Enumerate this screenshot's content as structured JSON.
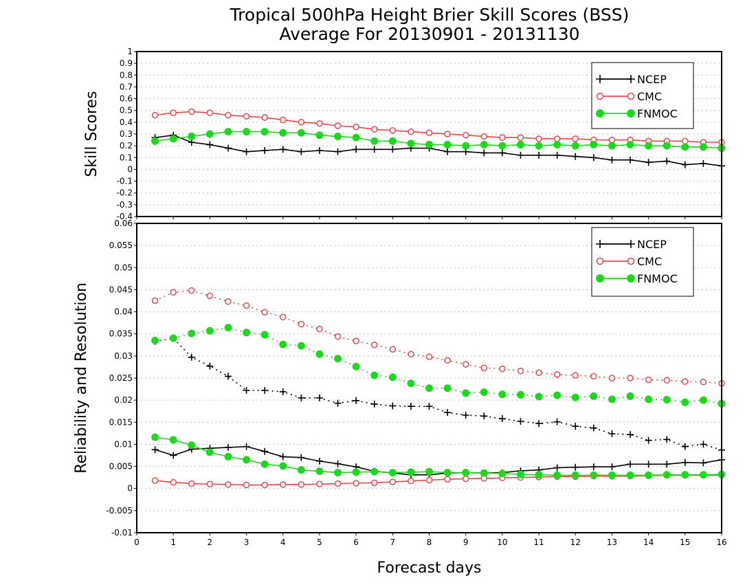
{
  "chart_data": [
    {
      "type": "line",
      "title": "Tropical 500hPa Height Brier Skill Scores (BSS)",
      "subtitle": "Average For 20130901 - 20131130",
      "ylabel": "Skill Scores",
      "xlabel": "",
      "xlim": [
        0,
        16
      ],
      "ylim": [
        -0.4,
        1
      ],
      "yticks": [
        "-0.4",
        "-0.3",
        "-0.2",
        "-0.1",
        "0",
        "0.1",
        "0.2",
        "0.3",
        "0.4",
        "0.5",
        "0.6",
        "0.7",
        "0.8",
        "0.9",
        "1"
      ],
      "grid": true,
      "legend_position": "top-right",
      "x": [
        0.5,
        1,
        1.5,
        2,
        2.5,
        3,
        3.5,
        4,
        4.5,
        5,
        5.5,
        6,
        6.5,
        7,
        7.5,
        8,
        8.5,
        9,
        9.5,
        10,
        10.5,
        11,
        11.5,
        12,
        12.5,
        13,
        13.5,
        14,
        14.5,
        15,
        15.5,
        16
      ],
      "series": [
        {
          "name": "NCEP",
          "color": "#000000",
          "marker": "plus",
          "line": "solid",
          "values": [
            0.27,
            0.29,
            0.23,
            0.21,
            0.18,
            0.15,
            0.16,
            0.17,
            0.15,
            0.16,
            0.15,
            0.17,
            0.17,
            0.17,
            0.18,
            0.18,
            0.15,
            0.15,
            0.14,
            0.14,
            0.12,
            0.12,
            0.12,
            0.11,
            0.1,
            0.08,
            0.08,
            0.06,
            0.07,
            0.04,
            0.05,
            0.03
          ]
        },
        {
          "name": "CMC",
          "color": "#e64646",
          "marker": "circle-open",
          "line": "solid",
          "values": [
            0.46,
            0.48,
            0.49,
            0.48,
            0.46,
            0.45,
            0.44,
            0.42,
            0.4,
            0.39,
            0.37,
            0.36,
            0.34,
            0.33,
            0.32,
            0.31,
            0.3,
            0.29,
            0.28,
            0.27,
            0.27,
            0.26,
            0.26,
            0.26,
            0.25,
            0.25,
            0.25,
            0.24,
            0.24,
            0.24,
            0.23,
            0.23
          ]
        },
        {
          "name": "FNMOC",
          "color": "#1ed71e",
          "marker": "circle-filled",
          "line": "solid",
          "values": [
            0.24,
            0.26,
            0.28,
            0.3,
            0.32,
            0.32,
            0.32,
            0.31,
            0.31,
            0.29,
            0.28,
            0.27,
            0.24,
            0.24,
            0.22,
            0.21,
            0.21,
            0.2,
            0.21,
            0.2,
            0.21,
            0.2,
            0.21,
            0.2,
            0.21,
            0.2,
            0.21,
            0.2,
            0.2,
            0.19,
            0.19,
            0.18
          ]
        }
      ]
    },
    {
      "type": "line",
      "title": "",
      "ylabel": "Reliability and Resolution",
      "xlabel": "Forecast days",
      "xlim": [
        0,
        16
      ],
      "ylim": [
        -0.01,
        0.06
      ],
      "xticks": [
        "0",
        "1",
        "2",
        "3",
        "4",
        "5",
        "6",
        "7",
        "8",
        "9",
        "10",
        "11",
        "12",
        "13",
        "14",
        "15",
        "16"
      ],
      "yticks": [
        "-0.01",
        "-0.005",
        "0",
        "0.005",
        "0.01",
        "0.015",
        "0.02",
        "0.025",
        "0.03",
        "0.035",
        "0.04",
        "0.045",
        "0.05",
        "0.055",
        "0.06"
      ],
      "grid": true,
      "legend_position": "top-right",
      "x": [
        0.5,
        1,
        1.5,
        2,
        2.5,
        3,
        3.5,
        4,
        4.5,
        5,
        5.5,
        6,
        6.5,
        7,
        7.5,
        8,
        8.5,
        9,
        9.5,
        10,
        10.5,
        11,
        11.5,
        12,
        12.5,
        13,
        13.5,
        14,
        14.5,
        15,
        15.5,
        16
      ],
      "series": [
        {
          "name": "NCEP",
          "color": "#000000",
          "marker": "plus",
          "line": "dotted",
          "legend": false,
          "values": [
            0.0333,
            0.034,
            0.0297,
            0.0277,
            0.0254,
            0.0222,
            0.0222,
            0.0219,
            0.0205,
            0.0205,
            0.0193,
            0.0199,
            0.0191,
            0.0187,
            0.0186,
            0.0186,
            0.0172,
            0.0166,
            0.0164,
            0.0158,
            0.0152,
            0.0147,
            0.0151,
            0.0141,
            0.0137,
            0.0124,
            0.0122,
            0.0109,
            0.0111,
            0.0095,
            0.01,
            0.0087
          ]
        },
        {
          "name": "CMC",
          "color": "#e64646",
          "marker": "circle-open",
          "line": "dotted",
          "legend": false,
          "values": [
            0.0425,
            0.0444,
            0.0448,
            0.0436,
            0.0423,
            0.0414,
            0.0399,
            0.0388,
            0.0372,
            0.0361,
            0.0344,
            0.0334,
            0.0325,
            0.0315,
            0.0304,
            0.0298,
            0.029,
            0.0281,
            0.0273,
            0.0271,
            0.0266,
            0.0262,
            0.0258,
            0.0256,
            0.0254,
            0.025,
            0.025,
            0.0246,
            0.0245,
            0.0242,
            0.0241,
            0.0238
          ]
        },
        {
          "name": "FNMOC",
          "color": "#1ed71e",
          "marker": "circle-filled",
          "line": "dotted",
          "legend": false,
          "values": [
            0.0335,
            0.034,
            0.0351,
            0.0357,
            0.0364,
            0.0353,
            0.0348,
            0.0326,
            0.0323,
            0.0304,
            0.0294,
            0.0276,
            0.0256,
            0.0252,
            0.0238,
            0.0227,
            0.0227,
            0.0216,
            0.0218,
            0.0213,
            0.0212,
            0.0208,
            0.0211,
            0.0206,
            0.0209,
            0.0202,
            0.0209,
            0.0202,
            0.0201,
            0.0195,
            0.02,
            0.0192
          ]
        },
        {
          "name": "NCEP",
          "color": "#000000",
          "marker": "plus",
          "line": "solid",
          "legend": true,
          "values": [
            0.0088,
            0.0075,
            0.0089,
            0.0091,
            0.0093,
            0.0095,
            0.0084,
            0.0072,
            0.007,
            0.0062,
            0.0056,
            0.0049,
            0.0039,
            0.0035,
            0.0031,
            0.0031,
            0.0035,
            0.0036,
            0.0035,
            0.0036,
            0.004,
            0.0042,
            0.0047,
            0.0048,
            0.0049,
            0.0049,
            0.0055,
            0.0055,
            0.0055,
            0.0059,
            0.0058,
            0.0065
          ]
        },
        {
          "name": "CMC",
          "color": "#e64646",
          "marker": "circle-open",
          "line": "solid",
          "legend": true,
          "values": [
            0.0018,
            0.0014,
            0.0011,
            0.001,
            0.0009,
            0.0008,
            0.0008,
            0.0009,
            0.0009,
            0.001,
            0.0011,
            0.0012,
            0.0013,
            0.0015,
            0.0017,
            0.0019,
            0.0021,
            0.0022,
            0.0023,
            0.0024,
            0.0025,
            0.0026,
            0.0027,
            0.0027,
            0.0028,
            0.0028,
            0.0028,
            0.0029,
            0.003,
            0.003,
            0.003,
            0.003
          ]
        },
        {
          "name": "FNMOC",
          "color": "#1ed71e",
          "marker": "circle-filled",
          "line": "solid",
          "legend": true,
          "values": [
            0.0116,
            0.011,
            0.0098,
            0.0082,
            0.0072,
            0.0065,
            0.0055,
            0.0051,
            0.0042,
            0.0039,
            0.0036,
            0.0037,
            0.0038,
            0.0036,
            0.0037,
            0.0038,
            0.0036,
            0.0036,
            0.0035,
            0.0034,
            0.0032,
            0.0031,
            0.003,
            0.003,
            0.003,
            0.003,
            0.003,
            0.003,
            0.0031,
            0.0031,
            0.0031,
            0.0032
          ]
        }
      ]
    }
  ]
}
